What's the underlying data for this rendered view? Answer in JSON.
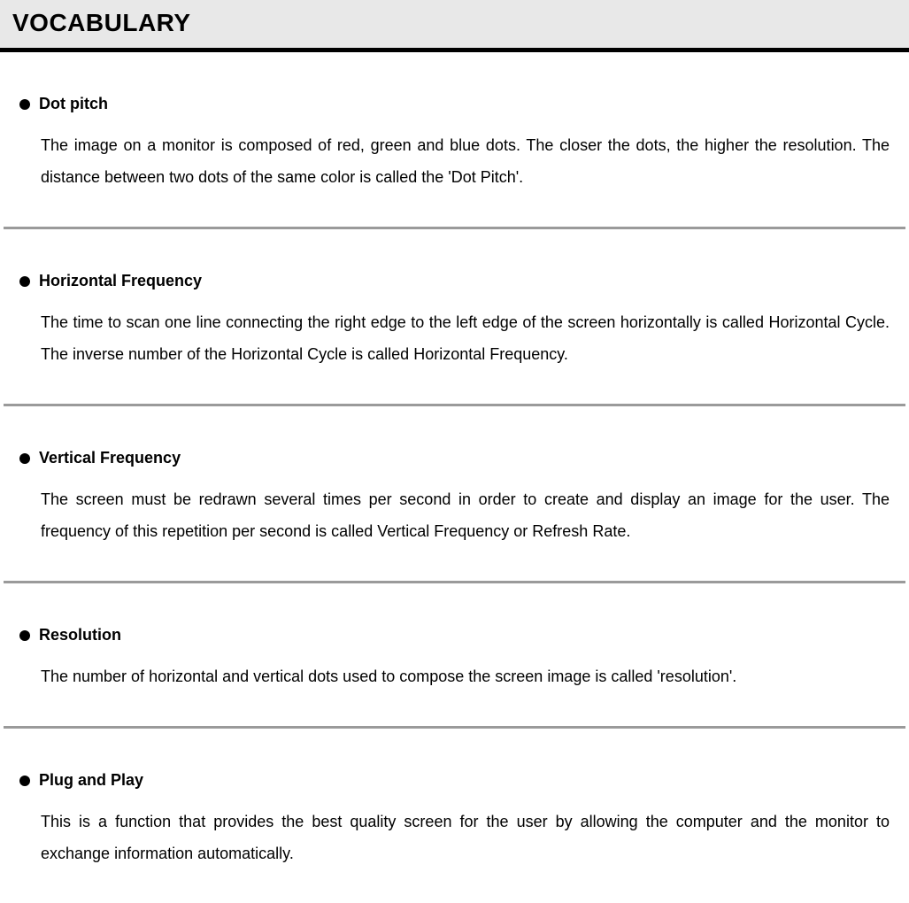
{
  "header": {
    "title": "VOCABULARY",
    "background_color": "#e8e8e8",
    "border_bottom_color": "#000000",
    "border_bottom_width": 5,
    "title_fontsize": 28,
    "title_weight": "bold",
    "title_color": "#000000"
  },
  "divider": {
    "color": "#9a9a9a",
    "height": 3
  },
  "bullet": {
    "color": "#000000",
    "diameter": 12
  },
  "typography": {
    "term_fontsize": 18,
    "term_weight": "bold",
    "definition_fontsize": 18,
    "definition_line_height": 2.0,
    "text_align": "justify",
    "font_family": "Arial"
  },
  "entries": [
    {
      "term": "Dot pitch",
      "definition": "The image on a monitor is composed of red, green and blue dots. The closer the dots, the higher the resolution. The distance between two dots of the same color is called the 'Dot Pitch'."
    },
    {
      "term": "Horizontal Frequency",
      "definition": "The time to scan one line connecting the right edge to the left edge of  the screen horizontally is called Horizontal Cycle. The inverse number of the Horizontal Cycle is called Horizontal Frequency."
    },
    {
      "term": "Vertical Frequency",
      "definition": "The screen must be redrawn several times per second in order to create and display an image for the user. The frequency of this repetition per second is called Vertical Frequency or Refresh Rate."
    },
    {
      "term": "Resolution",
      "definition": "The number of horizontal and vertical dots used to compose the screen image is called 'resolution'."
    },
    {
      "term": "Plug and Play",
      "definition": "This is a function  that provides the best quality screen for the user by allowing the computer and the monitor to exchange information automatically."
    }
  ]
}
